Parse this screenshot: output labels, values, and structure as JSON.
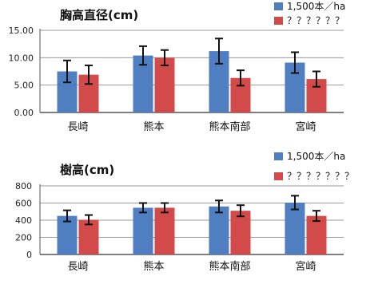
{
  "chart_data": [
    {
      "type": "bar",
      "title": "胸高直径(cm)",
      "categories": [
        "長崎",
        "熊本",
        "熊本南部",
        "宮崎"
      ],
      "ylim": [
        0,
        15
      ],
      "yticks": [
        "0.00",
        "5.00",
        "10.00",
        "15.00"
      ],
      "series": [
        {
          "name": "1,500本／ha",
          "values": [
            7.5,
            10.4,
            11.2,
            9.1
          ],
          "errors": [
            2.0,
            1.7,
            2.3,
            1.9
          ],
          "color": "#4f7fc0"
        },
        {
          "name": "？？？？？？",
          "values": [
            6.9,
            10.0,
            6.3,
            6.1
          ],
          "errors": [
            1.7,
            1.4,
            1.4,
            1.4
          ],
          "color": "#d24a4a"
        }
      ],
      "grid": true,
      "legend": "top-right"
    },
    {
      "type": "bar",
      "title": "樹高(cm)",
      "categories": [
        "長崎",
        "熊本",
        "熊本南部",
        "宮崎"
      ],
      "ylim": [
        0,
        800
      ],
      "yticks": [
        "0",
        "200",
        "400",
        "600",
        "800"
      ],
      "series": [
        {
          "name": "1,500本／ha",
          "values": [
            450,
            545,
            560,
            605
          ],
          "errors": [
            65,
            55,
            70,
            80
          ],
          "color": "#4f7fc0"
        },
        {
          "name": "？？？？？？？",
          "values": [
            405,
            545,
            510,
            450
          ],
          "errors": [
            55,
            55,
            65,
            60
          ],
          "color": "#d24a4a"
        }
      ],
      "grid": true,
      "legend": "top-right"
    }
  ]
}
